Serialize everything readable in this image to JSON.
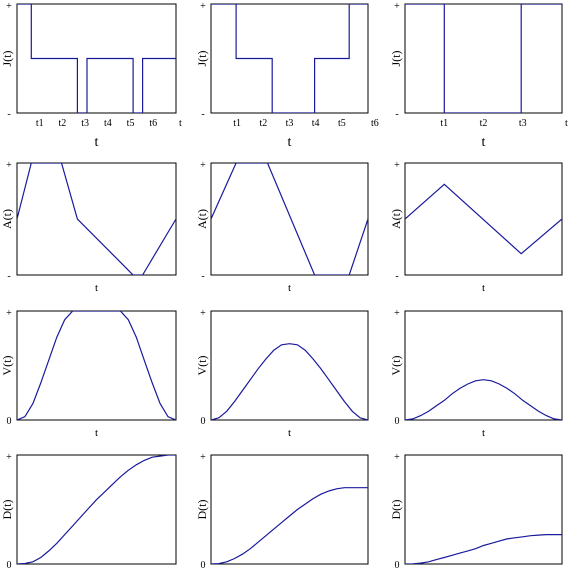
{
  "figure": {
    "line_color": "#1a1a9c",
    "frame_color": "#000000",
    "background": "#ffffff"
  },
  "chart_data": [
    {
      "panel": "jerk-col1",
      "type": "line",
      "ylabel": "J(t)",
      "xlabel": "t",
      "yticks": [
        "+",
        "-"
      ],
      "xticks": [
        "t1",
        "t2",
        "t3",
        "t4",
        "t5",
        "t6"
      ],
      "trailing_tick": "t",
      "xlim": [
        0,
        1
      ],
      "ylim": [
        -1,
        1
      ],
      "x": [
        0,
        0.09,
        0.09,
        0.38,
        0.38,
        0.44,
        0.44,
        0.73,
        0.73,
        0.79,
        0.79,
        1.0
      ],
      "y": [
        1,
        1,
        0,
        0,
        -1,
        -1,
        0,
        0,
        -1,
        -1,
        0,
        0
      ]
    },
    {
      "panel": "jerk-col2",
      "type": "line",
      "ylabel": "J(t)",
      "xlabel": "t",
      "yticks": [
        "+",
        "-"
      ],
      "xticks": [
        "t1",
        "t2",
        "t3",
        "t4",
        "t5"
      ],
      "trailing_tick": "t6",
      "xlim": [
        0,
        1
      ],
      "ylim": [
        -1,
        1
      ],
      "x": [
        0,
        0.16,
        0.16,
        0.39,
        0.39,
        0.66,
        0.66,
        0.88,
        0.88,
        1.0
      ],
      "y": [
        1,
        1,
        0,
        0,
        -1,
        -1,
        0,
        0,
        1,
        1
      ]
    },
    {
      "panel": "jerk-col3",
      "type": "line",
      "ylabel": "J(t)",
      "xlabel": "t",
      "yticks": [
        "+",
        "-"
      ],
      "xticks": [
        "t1",
        "t2",
        "t3"
      ],
      "trailing_tick": "t",
      "xlim": [
        0,
        1
      ],
      "ylim": [
        -1,
        1
      ],
      "x": [
        0,
        0.25,
        0.25,
        0.74,
        0.74,
        1.0
      ],
      "y": [
        1,
        1,
        -1,
        -1,
        1,
        1
      ]
    },
    {
      "panel": "accel-col1",
      "type": "line",
      "ylabel": "A(t)",
      "xlabel": "t",
      "yticks": [
        "+",
        "-"
      ],
      "xticks": [],
      "xlim": [
        0,
        1
      ],
      "ylim": [
        -1,
        1
      ],
      "x": [
        0,
        0.09,
        0.28,
        0.38,
        0.73,
        0.79,
        1.0
      ],
      "y": [
        0,
        1,
        1,
        0,
        -1,
        -1,
        0
      ]
    },
    {
      "panel": "accel-col2",
      "type": "line",
      "ylabel": "A(t)",
      "xlabel": "t",
      "yticks": [
        "+",
        "-"
      ],
      "xticks": [],
      "xlim": [
        0,
        1
      ],
      "ylim": [
        -1,
        1
      ],
      "x": [
        0,
        0.16,
        0.36,
        0.66,
        0.88,
        1.0
      ],
      "y": [
        0,
        1,
        1,
        -1,
        -1,
        0
      ]
    },
    {
      "panel": "accel-col3",
      "type": "line",
      "ylabel": "A(t)",
      "xlabel": "t",
      "yticks": [
        "+",
        "-"
      ],
      "xticks": [],
      "xlim": [
        0,
        1
      ],
      "ylim": [
        -1,
        1
      ],
      "x": [
        0,
        0.25,
        0.74,
        1.0
      ],
      "y": [
        0,
        0.62,
        -0.62,
        0
      ]
    },
    {
      "panel": "velocity-col1",
      "type": "line",
      "ylabel": "V(t)",
      "xlabel": "t",
      "yticks": [
        "+",
        "0"
      ],
      "xticks": [],
      "xlim": [
        0,
        1
      ],
      "ylim": [
        0,
        1
      ],
      "x": [
        0,
        0.05,
        0.1,
        0.15,
        0.2,
        0.25,
        0.3,
        0.35,
        0.4,
        0.5,
        0.6,
        0.65,
        0.7,
        0.75,
        0.8,
        0.85,
        0.9,
        0.95,
        1.0
      ],
      "y": [
        0,
        0.03,
        0.15,
        0.34,
        0.55,
        0.76,
        0.92,
        1.0,
        1.0,
        1.0,
        1.0,
        1.0,
        0.92,
        0.76,
        0.55,
        0.34,
        0.15,
        0.03,
        0
      ]
    },
    {
      "panel": "velocity-col2",
      "type": "line",
      "ylabel": "V(t)",
      "xlabel": "t",
      "yticks": [
        "+",
        "0"
      ],
      "xticks": [],
      "xlim": [
        0,
        1
      ],
      "ylim": [
        0,
        1
      ],
      "x": [
        0,
        0.05,
        0.1,
        0.15,
        0.2,
        0.25,
        0.3,
        0.35,
        0.4,
        0.45,
        0.5,
        0.55,
        0.6,
        0.65,
        0.7,
        0.75,
        0.8,
        0.85,
        0.9,
        0.95,
        1.0
      ],
      "y": [
        0,
        0.02,
        0.08,
        0.17,
        0.27,
        0.37,
        0.47,
        0.56,
        0.64,
        0.69,
        0.7,
        0.69,
        0.64,
        0.56,
        0.47,
        0.37,
        0.27,
        0.17,
        0.08,
        0.02,
        0
      ]
    },
    {
      "panel": "velocity-col3",
      "type": "line",
      "ylabel": "V(t)",
      "xlabel": "t",
      "yticks": [
        "+",
        "0"
      ],
      "xticks": [],
      "xlim": [
        0,
        1
      ],
      "ylim": [
        0,
        1
      ],
      "x": [
        0,
        0.05,
        0.1,
        0.15,
        0.2,
        0.25,
        0.3,
        0.35,
        0.4,
        0.45,
        0.5,
        0.55,
        0.6,
        0.65,
        0.7,
        0.75,
        0.8,
        0.85,
        0.9,
        0.95,
        1.0
      ],
      "y": [
        0,
        0.01,
        0.04,
        0.08,
        0.13,
        0.18,
        0.24,
        0.29,
        0.33,
        0.36,
        0.37,
        0.36,
        0.33,
        0.29,
        0.24,
        0.18,
        0.13,
        0.08,
        0.04,
        0.01,
        0
      ]
    },
    {
      "panel": "displacement-col1",
      "type": "line",
      "ylabel": "D(t)",
      "xlabel": "",
      "yticks": [
        "+",
        "0"
      ],
      "xticks": [],
      "xlim": [
        0,
        1
      ],
      "ylim": [
        0,
        1
      ],
      "x": [
        0,
        0.05,
        0.1,
        0.15,
        0.2,
        0.25,
        0.3,
        0.35,
        0.4,
        0.45,
        0.5,
        0.55,
        0.6,
        0.65,
        0.7,
        0.75,
        0.8,
        0.85,
        0.9,
        0.95,
        1.0
      ],
      "y": [
        0,
        0.005,
        0.02,
        0.06,
        0.12,
        0.19,
        0.27,
        0.35,
        0.43,
        0.51,
        0.59,
        0.66,
        0.73,
        0.8,
        0.86,
        0.91,
        0.95,
        0.98,
        0.99,
        1.0,
        1.0
      ]
    },
    {
      "panel": "displacement-col2",
      "type": "line",
      "ylabel": "D(t)",
      "xlabel": "",
      "yticks": [
        "+",
        "0"
      ],
      "xticks": [],
      "xlim": [
        0,
        1
      ],
      "ylim": [
        0,
        1
      ],
      "x": [
        0,
        0.05,
        0.1,
        0.15,
        0.2,
        0.25,
        0.3,
        0.35,
        0.4,
        0.45,
        0.5,
        0.55,
        0.6,
        0.65,
        0.7,
        0.75,
        0.8,
        0.85,
        0.9,
        0.95,
        1.0
      ],
      "y": [
        0,
        0.004,
        0.02,
        0.05,
        0.09,
        0.14,
        0.2,
        0.26,
        0.32,
        0.38,
        0.44,
        0.5,
        0.55,
        0.6,
        0.64,
        0.67,
        0.69,
        0.7,
        0.7,
        0.7,
        0.7
      ]
    },
    {
      "panel": "displacement-col3",
      "type": "line",
      "ylabel": "D(t)",
      "xlabel": "",
      "yticks": [
        "+",
        "0"
      ],
      "xticks": [],
      "xlim": [
        0,
        1
      ],
      "ylim": [
        0,
        1
      ],
      "x": [
        0,
        0.05,
        0.1,
        0.15,
        0.2,
        0.25,
        0.3,
        0.35,
        0.4,
        0.45,
        0.5,
        0.55,
        0.6,
        0.65,
        0.7,
        0.75,
        0.8,
        0.85,
        0.9,
        0.95,
        1.0
      ],
      "y": [
        0,
        0.002,
        0.008,
        0.02,
        0.04,
        0.06,
        0.08,
        0.1,
        0.12,
        0.14,
        0.17,
        0.19,
        0.21,
        0.23,
        0.24,
        0.25,
        0.26,
        0.265,
        0.27,
        0.27,
        0.27
      ]
    }
  ]
}
